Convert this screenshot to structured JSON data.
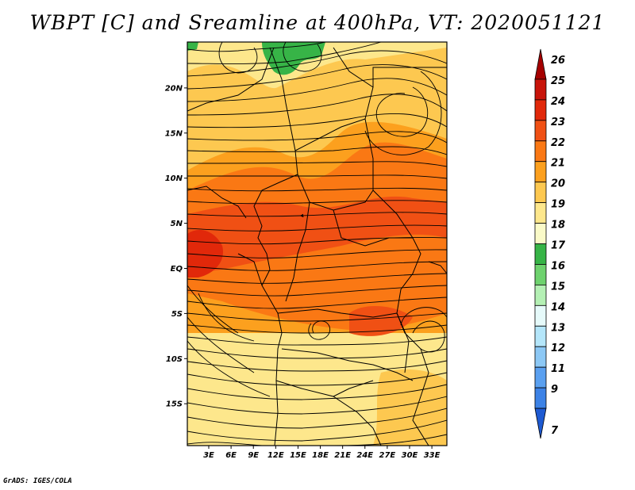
{
  "title": "WBPT [C] and Sreamline at 400hPa, VT: 2020051121",
  "credit": "GrADS: IGES/COLA",
  "lat_ticks": [
    {
      "label": "20N",
      "lat": 20
    },
    {
      "label": "15N",
      "lat": 15
    },
    {
      "label": "10N",
      "lat": 10
    },
    {
      "label": "5N",
      "lat": 5
    },
    {
      "label": "EQ",
      "lat": 0
    },
    {
      "label": "5S",
      "lat": -5
    },
    {
      "label": "10S",
      "lat": -10
    },
    {
      "label": "15S",
      "lat": -15
    }
  ],
  "lon_ticks": [
    {
      "label": "3E",
      "lon": 3
    },
    {
      "label": "6E",
      "lon": 6
    },
    {
      "label": "9E",
      "lon": 9
    },
    {
      "label": "12E",
      "lon": 12
    },
    {
      "label": "15E",
      "lon": 15
    },
    {
      "label": "18E",
      "lon": 18
    },
    {
      "label": "21E",
      "lon": 21
    },
    {
      "label": "24E",
      "lon": 24
    },
    {
      "label": "27E",
      "lon": 27
    },
    {
      "label": "30E",
      "lon": 30
    },
    {
      "label": "33E",
      "lon": 33
    }
  ],
  "colorbar": {
    "levels": [
      {
        "label": "26",
        "color": "#a50000"
      },
      {
        "label": "25",
        "color": "#c8140a"
      },
      {
        "label": "24",
        "color": "#e1280a"
      },
      {
        "label": "23",
        "color": "#f05014"
      },
      {
        "label": "22",
        "color": "#fa7814"
      },
      {
        "label": "21",
        "color": "#fca01e"
      },
      {
        "label": "20",
        "color": "#fdc850"
      },
      {
        "label": "19",
        "color": "#fde78c"
      },
      {
        "label": "18",
        "color": "#fafac8"
      },
      {
        "label": "17",
        "color": "#37b447"
      },
      {
        "label": "16",
        "color": "#6ed26e"
      },
      {
        "label": "15",
        "color": "#b4f0b4"
      },
      {
        "label": "14",
        "color": "#e6fafa"
      },
      {
        "label": "13",
        "color": "#b4e6fa"
      },
      {
        "label": "12",
        "color": "#8cc8f5"
      },
      {
        "label": "11",
        "color": "#5aa0f0"
      },
      {
        "label": "9",
        "color": "#3c82e6"
      },
      {
        "label": "7",
        "color": "#1e5ad2"
      }
    ]
  }
}
